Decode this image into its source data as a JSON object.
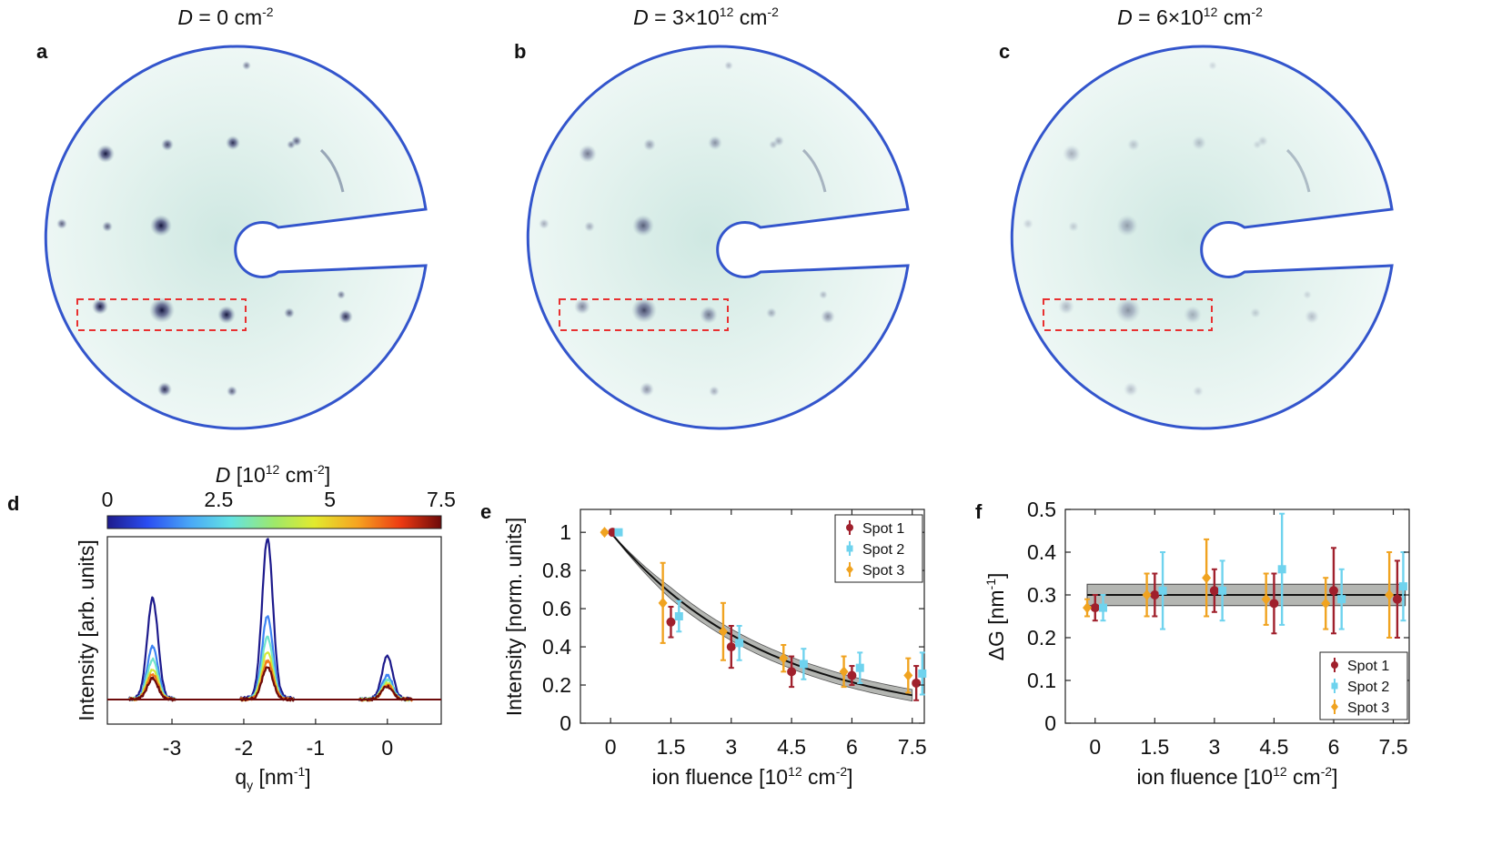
{
  "colors": {
    "outline": "#3355cc",
    "roi": "#e83030",
    "pattern_bg": "#e7f4f1",
    "spot": "#1c1e45",
    "spot1": "#a0202c",
    "spot2": "#6fd3ee",
    "spot3": "#f0a320",
    "band": "#b4b6b2"
  },
  "panels": {
    "a": {
      "letter": "a",
      "title_var": "D",
      "title_value": " = 0 cm",
      "title_sup": "-2",
      "spot_scale": 1.0
    },
    "b": {
      "letter": "b",
      "title_var": "D",
      "title_value": " = 3×10",
      "title_exp": "12",
      "title_unit": " cm",
      "title_sup": "-2",
      "spot_scale": 0.5
    },
    "c": {
      "letter": "c",
      "title_var": "D",
      "title_value": " = 6×10",
      "title_exp": "12",
      "title_unit": " cm",
      "title_sup": "-2",
      "spot_scale": 0.28
    }
  },
  "chart_data": [
    {
      "id": "d",
      "type": "line",
      "letter": "d",
      "xlabel": "q",
      "xlabel_sub": "y",
      "xlabel_unit": " [nm",
      "xlabel_sup": "-1",
      "xlabel_end": "]",
      "ylabel": "Intensity [arb. units]",
      "xlim": [
        -3.9,
        0.75
      ],
      "xticks": [
        "-3",
        "-2",
        "-1",
        "0"
      ],
      "xtick_values": [
        -3,
        -2,
        -1,
        0
      ],
      "colorbar": {
        "label_var": "D",
        "label_rest": " [10",
        "label_exp": "12",
        "label_unit": " cm",
        "label_sup": "-2",
        "label_end": "]",
        "ticks": [
          "0",
          "2.5",
          "5",
          "7.5"
        ],
        "tick_values": [
          0,
          2.5,
          5,
          7.5
        ],
        "range": [
          0,
          7.5
        ]
      },
      "peak_centers": [
        -3.27,
        -1.67,
        0.0
      ],
      "peak_windows": [
        [
          -3.6,
          -2.95
        ],
        [
          -2.05,
          -1.3
        ],
        [
          -0.4,
          0.35
        ]
      ],
      "series": [
        {
          "name": "D=0",
          "fluence": 0,
          "peak_heights": [
            0.63,
            1.0,
            0.27
          ]
        },
        {
          "name": "D=1.5",
          "fluence": 1.5,
          "peak_heights": [
            0.33,
            0.52,
            0.15
          ]
        },
        {
          "name": "D=3",
          "fluence": 3,
          "peak_heights": [
            0.25,
            0.39,
            0.12
          ]
        },
        {
          "name": "D=4.5",
          "fluence": 4.5,
          "peak_heights": [
            0.19,
            0.3,
            0.1
          ]
        },
        {
          "name": "D=6",
          "fluence": 6,
          "peak_heights": [
            0.16,
            0.24,
            0.09
          ]
        },
        {
          "name": "D=7.5",
          "fluence": 7.5,
          "peak_heights": [
            0.13,
            0.2,
            0.08
          ]
        }
      ]
    },
    {
      "id": "e",
      "type": "scatter",
      "letter": "e",
      "xlabel": "ion fluence [10",
      "xlabel_exp": "12",
      "xlabel_unit": " cm",
      "xlabel_sup": "-2",
      "xlabel_end": "]",
      "ylabel": "Intensity [norm. units]",
      "xlim": [
        -0.75,
        7.8
      ],
      "ylim": [
        0,
        1.12
      ],
      "xticks": [
        "0",
        "1.5",
        "3",
        "4.5",
        "6",
        "7.5"
      ],
      "xtick_values": [
        0,
        1.5,
        3,
        4.5,
        6,
        7.5
      ],
      "yticks": [
        "0",
        "0.2",
        "0.4",
        "0.6",
        "0.8",
        "1"
      ],
      "ytick_values": [
        0,
        0.2,
        0.4,
        0.6,
        0.8,
        1
      ],
      "fit": {
        "type": "exp_decay",
        "tau": 3.9,
        "band": 0.03,
        "x_range": [
          0,
          7.5
        ]
      },
      "legend": [
        "Spot 1",
        "Spot 2",
        "Spot 3"
      ],
      "series": [
        {
          "name": "Spot 1",
          "x": [
            0.05,
            1.5,
            3.0,
            4.5,
            6.0,
            7.6
          ],
          "y": [
            1.0,
            0.53,
            0.4,
            0.27,
            0.25,
            0.21
          ],
          "err": [
            0.01,
            0.08,
            0.11,
            0.08,
            0.05,
            0.09
          ]
        },
        {
          "name": "Spot 2",
          "x": [
            0.2,
            1.7,
            3.2,
            4.8,
            6.2,
            7.75
          ],
          "y": [
            1.0,
            0.56,
            0.42,
            0.31,
            0.29,
            0.26
          ],
          "err": [
            0.01,
            0.08,
            0.09,
            0.08,
            0.08,
            0.11
          ]
        },
        {
          "name": "Spot 3",
          "x": [
            -0.15,
            1.3,
            2.8,
            4.3,
            5.8,
            7.4
          ],
          "y": [
            1.0,
            0.63,
            0.48,
            0.34,
            0.27,
            0.25
          ],
          "err": [
            0.01,
            0.21,
            0.15,
            0.07,
            0.08,
            0.09
          ]
        }
      ]
    },
    {
      "id": "f",
      "type": "scatter",
      "letter": "f",
      "xlabel": "ion fluence [10",
      "xlabel_exp": "12",
      "xlabel_unit": " cm",
      "xlabel_sup": "-2",
      "xlabel_end": "]",
      "ylabel": "ΔG [nm",
      "ylabel_sup": "-1",
      "ylabel_end": "]",
      "xlim": [
        -0.75,
        7.9
      ],
      "ylim": [
        0,
        0.5
      ],
      "xticks": [
        "0",
        "1.5",
        "3",
        "4.5",
        "6",
        "7.5"
      ],
      "xtick_values": [
        0,
        1.5,
        3,
        4.5,
        6,
        7.5
      ],
      "yticks": [
        "0",
        "0.1",
        "0.2",
        "0.3",
        "0.4",
        "0.5"
      ],
      "ytick_values": [
        0,
        0.1,
        0.2,
        0.3,
        0.4,
        0.5
      ],
      "fit": {
        "type": "constant",
        "value": 0.3,
        "band": 0.025,
        "x_range": [
          -0.2,
          7.8
        ]
      },
      "legend": [
        "Spot 1",
        "Spot 2",
        "Spot 3"
      ],
      "series": [
        {
          "name": "Spot 1",
          "x": [
            0.0,
            1.5,
            3.0,
            4.5,
            6.0,
            7.6
          ],
          "y": [
            0.27,
            0.3,
            0.31,
            0.28,
            0.31,
            0.29
          ],
          "err": [
            0.03,
            0.05,
            0.05,
            0.07,
            0.1,
            0.09
          ]
        },
        {
          "name": "Spot 2",
          "x": [
            0.2,
            1.7,
            3.2,
            4.7,
            6.2,
            7.75
          ],
          "y": [
            0.27,
            0.31,
            0.31,
            0.36,
            0.29,
            0.32
          ],
          "err": [
            0.03,
            0.09,
            0.07,
            0.13,
            0.07,
            0.08
          ]
        },
        {
          "name": "Spot 3",
          "x": [
            -0.2,
            1.3,
            2.8,
            4.3,
            5.8,
            7.4
          ],
          "y": [
            0.27,
            0.3,
            0.34,
            0.29,
            0.28,
            0.3
          ],
          "err": [
            0.02,
            0.05,
            0.09,
            0.06,
            0.06,
            0.1
          ]
        }
      ]
    }
  ]
}
